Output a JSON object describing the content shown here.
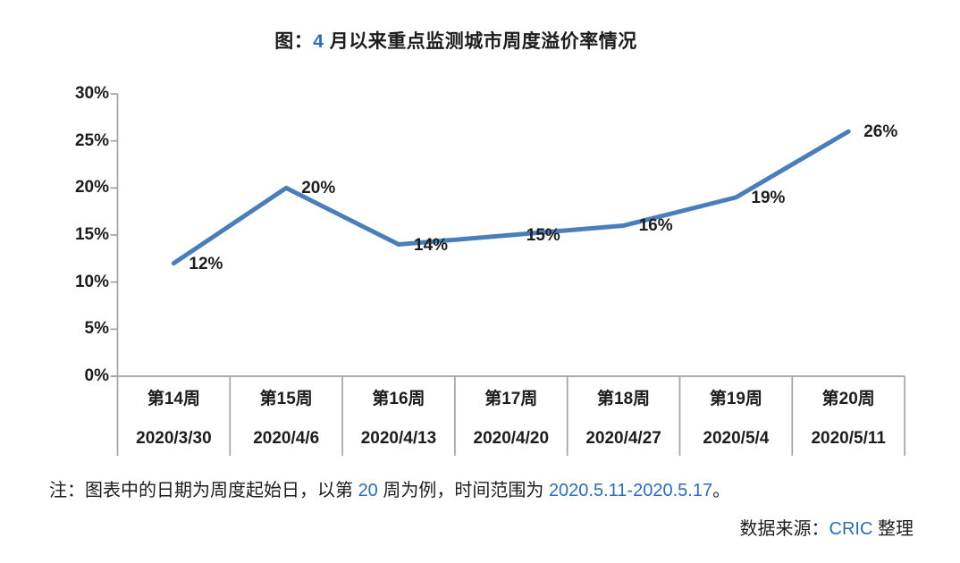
{
  "title": {
    "prefix": "图：",
    "number": "4",
    "suffix": " 月以来重点监测城市周度溢价率情况"
  },
  "chart_data": {
    "type": "line",
    "title": "图：4 月以来重点监测城市周度溢价率情况",
    "categories": [
      "第14周",
      "第15周",
      "第16周",
      "第17周",
      "第18周",
      "第19周",
      "第20周"
    ],
    "category_dates": [
      "2020/3/30",
      "2020/4/6",
      "2020/4/13",
      "2020/4/20",
      "2020/4/27",
      "2020/5/4",
      "2020/5/11"
    ],
    "values": [
      12,
      20,
      14,
      15,
      16,
      19,
      26
    ],
    "data_labels": [
      "12%",
      "20%",
      "14%",
      "15%",
      "16%",
      "19%",
      "26%"
    ],
    "xlabel": "",
    "ylabel": "",
    "ylim": [
      0,
      30
    ],
    "yticks": [
      0,
      5,
      10,
      15,
      20,
      25,
      30
    ],
    "ytick_labels": [
      "0%",
      "5%",
      "10%",
      "15%",
      "20%",
      "25%",
      "30%"
    ],
    "grid": false,
    "legend": "none",
    "line_color": "#4a7ebb",
    "axis_color": "#a3a3a3",
    "text_color": "#1d1d1d"
  },
  "note": {
    "prefix": "注：图表中的日期为周度起始日，以第 ",
    "week_number": "20",
    "middle": " 周为例，时间范围为 ",
    "date_range": "2020.5.11-2020.5.17",
    "suffix": "。"
  },
  "source": {
    "prefix": "数据来源：",
    "org": "CRIC",
    "suffix": " 整理"
  },
  "colors": {
    "accent_blue": "#2e6cb5",
    "series_blue": "#4a7ebb",
    "axis_gray": "#a3a3a3",
    "text": "#1d1d1d"
  }
}
